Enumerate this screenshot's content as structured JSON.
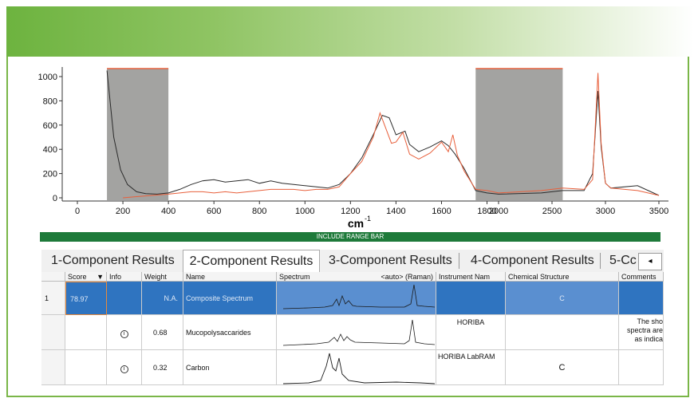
{
  "chart_data": {
    "type": "line",
    "xlabel": "cm",
    "xlabel_superscript": "-1",
    "y_ticks": [
      "0",
      "200",
      "400",
      "600",
      "800",
      "1000"
    ],
    "x_ticks_left": [
      "0",
      "200",
      "400",
      "600",
      "800",
      "1000",
      "1200",
      "1400",
      "1600",
      "1800"
    ],
    "x_ticks_right": [
      "2000",
      "2500",
      "3000",
      "3500"
    ],
    "excluded_ranges": [
      [
        130,
        400
      ],
      [
        1750,
        2600
      ]
    ],
    "series": [
      {
        "color": "#2b2b2b",
        "points": [
          [
            130,
            1050
          ],
          [
            160,
            500
          ],
          [
            190,
            230
          ],
          [
            220,
            110
          ],
          [
            260,
            50
          ],
          [
            300,
            35
          ],
          [
            350,
            30
          ],
          [
            400,
            40
          ],
          [
            450,
            70
          ],
          [
            500,
            110
          ],
          [
            550,
            140
          ],
          [
            600,
            150
          ],
          [
            650,
            130
          ],
          [
            700,
            140
          ],
          [
            750,
            150
          ],
          [
            800,
            120
          ],
          [
            850,
            140
          ],
          [
            900,
            120
          ],
          [
            950,
            110
          ],
          [
            1000,
            100
          ],
          [
            1050,
            90
          ],
          [
            1100,
            80
          ],
          [
            1150,
            110
          ],
          [
            1200,
            200
          ],
          [
            1250,
            330
          ],
          [
            1300,
            520
          ],
          [
            1340,
            680
          ],
          [
            1370,
            660
          ],
          [
            1400,
            520
          ],
          [
            1440,
            550
          ],
          [
            1460,
            440
          ],
          [
            1500,
            380
          ],
          [
            1550,
            420
          ],
          [
            1600,
            470
          ],
          [
            1630,
            430
          ],
          [
            1660,
            360
          ],
          [
            1700,
            240
          ],
          [
            1750,
            60
          ],
          [
            1800,
            40
          ],
          [
            2000,
            30
          ],
          [
            2400,
            40
          ],
          [
            2600,
            60
          ],
          [
            2800,
            60
          ],
          [
            2880,
            200
          ],
          [
            2930,
            880
          ],
          [
            2960,
            420
          ],
          [
            3000,
            120
          ],
          [
            3050,
            80
          ],
          [
            3300,
            100
          ],
          [
            3500,
            20
          ]
        ]
      },
      {
        "color": "#e8603c",
        "points": [
          [
            200,
            0
          ],
          [
            260,
            10
          ],
          [
            330,
            20
          ],
          [
            400,
            30
          ],
          [
            450,
            40
          ],
          [
            500,
            50
          ],
          [
            550,
            50
          ],
          [
            600,
            40
          ],
          [
            650,
            50
          ],
          [
            700,
            40
          ],
          [
            750,
            50
          ],
          [
            800,
            60
          ],
          [
            850,
            70
          ],
          [
            900,
            70
          ],
          [
            950,
            70
          ],
          [
            1000,
            60
          ],
          [
            1050,
            70
          ],
          [
            1100,
            70
          ],
          [
            1150,
            90
          ],
          [
            1200,
            200
          ],
          [
            1250,
            300
          ],
          [
            1300,
            500
          ],
          [
            1330,
            700
          ],
          [
            1350,
            600
          ],
          [
            1380,
            450
          ],
          [
            1400,
            460
          ],
          [
            1430,
            540
          ],
          [
            1460,
            360
          ],
          [
            1500,
            320
          ],
          [
            1550,
            370
          ],
          [
            1600,
            460
          ],
          [
            1630,
            380
          ],
          [
            1650,
            520
          ],
          [
            1670,
            350
          ],
          [
            1700,
            220
          ],
          [
            1750,
            70
          ],
          [
            1800,
            60
          ],
          [
            2000,
            40
          ],
          [
            2400,
            60
          ],
          [
            2600,
            80
          ],
          [
            2800,
            70
          ],
          [
            2880,
            150
          ],
          [
            2930,
            1030
          ],
          [
            2960,
            450
          ],
          [
            3000,
            120
          ],
          [
            3050,
            80
          ],
          [
            3300,
            60
          ],
          [
            3500,
            20
          ]
        ]
      }
    ]
  },
  "range_bar": {
    "label": "INCLUDE RANGE BAR"
  },
  "tabs": [
    {
      "label": "1-Component Results"
    },
    {
      "label": "2-Component Results"
    },
    {
      "label": "3-Component Results"
    },
    {
      "label": "4-Component Results"
    },
    {
      "label": "5-Cc"
    }
  ],
  "tab_scroll": {
    "label": "◂"
  },
  "columns": {
    "score": "Score",
    "info": "Info",
    "weight": "Weight",
    "name": "Name",
    "spectrum": "Spectrum",
    "spectrum_mode": "<auto> (Raman)",
    "instrument": "Instrument Nam",
    "chemical": "Chemical Structure",
    "comments": "Comments"
  },
  "rows": [
    {
      "index": "1",
      "score": "78.97",
      "weight": "N.A.",
      "name": "Composite Spectrum",
      "instrument": "",
      "chemical": "C",
      "comments": ""
    },
    {
      "index": "",
      "score": "",
      "weight": "0.68",
      "name": "Mucopolysaccarides",
      "instrument": "HORIBA",
      "chemical": "",
      "comments_1": "The sho",
      "comments_2": "spectra are",
      "comments_3": "as indica"
    },
    {
      "index": "",
      "score": "",
      "weight": "0.32",
      "name": "Carbon",
      "instrument": "HORIBA  LabRAM",
      "chemical": "C",
      "comments": ""
    }
  ],
  "icons": {
    "sort": "sort-desc-icon",
    "info": "info-icon"
  }
}
